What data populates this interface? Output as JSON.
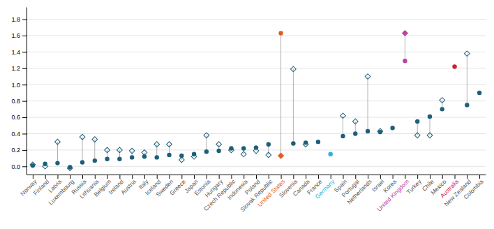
{
  "chart_data": {
    "type": "dot",
    "categories": [
      "Norway",
      "Finland",
      "Latvia",
      "Luxembourg",
      "Russia",
      "Lithuania",
      "Belgium",
      "Ireland",
      "Austria",
      "Italy",
      "Iceland",
      "Sweden",
      "Greece",
      "Japan",
      "Estonia",
      "Hungary",
      "Czech Republic",
      "Indonesia",
      "Poland",
      "Slovak Republic",
      "United States",
      "Slovenia",
      "Canada",
      "France",
      "Germany",
      "Spain",
      "Portugal",
      "Netherlands",
      "Israel",
      "Korea",
      "United Kingdom",
      "Turkey",
      "Chile",
      "Mexico",
      "Australia",
      "New Zealand",
      "Colombia"
    ],
    "series": [
      {
        "marker": "circle",
        "color": "#1e5f7a",
        "values": [
          0.01,
          0.03,
          0.04,
          -0.01,
          0.05,
          0.07,
          0.09,
          0.09,
          0.11,
          0.12,
          0.11,
          0.14,
          0.13,
          0.15,
          0.18,
          0.19,
          0.22,
          0.22,
          0.23,
          0.27,
          1.63,
          0.28,
          0.29,
          0.3,
          0.15,
          0.37,
          0.4,
          0.43,
          0.42,
          0.47,
          1.29,
          0.55,
          0.61,
          0.7,
          1.22,
          0.75,
          0.9
        ],
        "colors": [
          "#1e5f7a",
          "#1e5f7a",
          "#1e5f7a",
          "#1e5f7a",
          "#1e5f7a",
          "#1e5f7a",
          "#1e5f7a",
          "#1e5f7a",
          "#1e5f7a",
          "#1e5f7a",
          "#1e5f7a",
          "#1e5f7a",
          "#1e5f7a",
          "#1e5f7a",
          "#1e5f7a",
          "#1e5f7a",
          "#1e5f7a",
          "#1e5f7a",
          "#1e5f7a",
          "#1e5f7a",
          "#e05c20",
          "#1e5f7a",
          "#1e5f7a",
          "#1e5f7a",
          "#2ab0e0",
          "#1e5f7a",
          "#1e5f7a",
          "#1e5f7a",
          "#1e5f7a",
          "#1e5f7a",
          "#c040a0",
          "#1e5f7a",
          "#1e5f7a",
          "#1e5f7a",
          "#d02030",
          "#1e5f7a",
          "#1e5f7a"
        ]
      },
      {
        "marker": "diamond",
        "color": "#1e5f7a",
        "values": [
          0.02,
          0.0,
          0.3,
          -0.02,
          0.36,
          0.33,
          0.2,
          0.2,
          0.19,
          0.17,
          0.27,
          0.27,
          0.08,
          0.12,
          0.38,
          0.27,
          0.2,
          0.15,
          0.19,
          0.14,
          0.13,
          1.19,
          0.27,
          null,
          null,
          0.62,
          0.55,
          1.1,
          0.43,
          null,
          1.63,
          0.38,
          0.38,
          0.81,
          null,
          1.38,
          null
        ],
        "colors": [
          "#1e5f7a",
          "#1e5f7a",
          "#1e5f7a",
          "#1e5f7a",
          "#1e5f7a",
          "#1e5f7a",
          "#1e5f7a",
          "#1e5f7a",
          "#1e5f7a",
          "#1e5f7a",
          "#1e5f7a",
          "#1e5f7a",
          "#1e5f7a",
          "#1e5f7a",
          "#1e5f7a",
          "#1e5f7a",
          "#1e5f7a",
          "#1e5f7a",
          "#1e5f7a",
          "#1e5f7a",
          "#e05c20",
          "#1e5f7a",
          "#1e5f7a",
          "#1e5f7a",
          "#1e5f7a",
          "#1e5f7a",
          "#1e5f7a",
          "#1e5f7a",
          "#1e5f7a",
          "#1e5f7a",
          "#c040a0",
          "#1e5f7a",
          "#1e5f7a",
          "#1e5f7a",
          "#1e5f7a",
          "#1e5f7a",
          "#1e5f7a"
        ]
      }
    ],
    "ylim": [
      -0.1,
      1.95
    ],
    "yticks": [
      {
        "value": 0.0,
        "label": "0.0"
      },
      0.2,
      0.4,
      0.6,
      0.8,
      {
        "value": 1.0,
        "label": "1.0"
      },
      1.2,
      1.4,
      1.6,
      1.8
    ],
    "grid": true
  }
}
